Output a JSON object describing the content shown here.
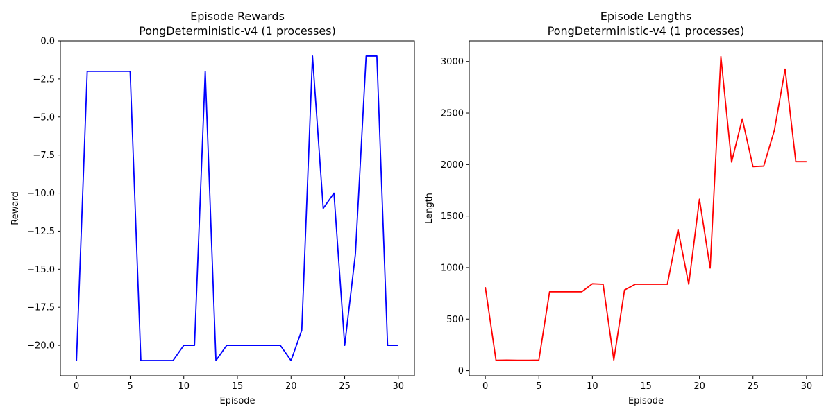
{
  "chart_data": [
    {
      "type": "line",
      "title": "Episode Rewards",
      "subtitle": "PongDeterministic-v4 (1 processes)",
      "xlabel": "Episode",
      "ylabel": "Reward",
      "xlim": [
        -1.5,
        31.5
      ],
      "ylim": [
        -22.0,
        0.0
      ],
      "xticks": [
        0,
        5,
        10,
        15,
        20,
        25,
        30
      ],
      "xtick_labels": [
        "0",
        "5",
        "10",
        "15",
        "20",
        "25",
        "30"
      ],
      "yticks": [
        0.0,
        -2.5,
        -5.0,
        -7.5,
        -10.0,
        -12.5,
        -15.0,
        -17.5,
        -20.0
      ],
      "ytick_labels": [
        "0.0",
        "−2.5",
        "−5.0",
        "−7.5",
        "−10.0",
        "−12.5",
        "−15.0",
        "−17.5",
        "−20.0"
      ],
      "color": "#0000ff",
      "grid": false,
      "series": [
        {
          "x": [
            0,
            1,
            2,
            3,
            4,
            5,
            6,
            7,
            8,
            9,
            10,
            11,
            12,
            13,
            14,
            15,
            16,
            17,
            18,
            19,
            20,
            21,
            22,
            23,
            24,
            25,
            26,
            27,
            28,
            29,
            30
          ],
          "values": [
            -21,
            -2,
            -2,
            -2,
            -2,
            -2,
            -21,
            -21,
            -21,
            -21,
            -20,
            -20,
            -2,
            -21,
            -20,
            -20,
            -20,
            -20,
            -20,
            -20,
            -21,
            -19,
            -1,
            -11,
            -10,
            -20,
            -14,
            -1,
            -1,
            -20,
            -20
          ]
        }
      ]
    },
    {
      "type": "line",
      "title": "Episode Lengths",
      "subtitle": "PongDeterministic-v4 (1 processes)",
      "xlabel": "Episode",
      "ylabel": "Length",
      "xlim": [
        -1.5,
        31.5
      ],
      "ylim": [
        -50,
        3200
      ],
      "xticks": [
        0,
        5,
        10,
        15,
        20,
        25,
        30
      ],
      "xtick_labels": [
        "0",
        "5",
        "10",
        "15",
        "20",
        "25",
        "30"
      ],
      "yticks": [
        0,
        500,
        1000,
        1500,
        2000,
        2500,
        3000
      ],
      "ytick_labels": [
        "0",
        "500",
        "1000",
        "1500",
        "2000",
        "2500",
        "3000"
      ],
      "color": "#ff0000",
      "grid": false,
      "series": [
        {
          "x": [
            0,
            1,
            2,
            3,
            4,
            5,
            6,
            7,
            8,
            9,
            10,
            11,
            12,
            13,
            14,
            15,
            16,
            17,
            18,
            19,
            20,
            21,
            22,
            23,
            24,
            25,
            26,
            27,
            28,
            29,
            30
          ],
          "values": [
            810,
            100,
            102,
            100,
            100,
            102,
            765,
            765,
            765,
            765,
            843,
            838,
            103,
            782,
            838,
            838,
            838,
            838,
            1368,
            838,
            1664,
            996,
            3048,
            2024,
            2443,
            1980,
            1985,
            2334,
            2926,
            2028,
            2028
          ]
        }
      ]
    }
  ]
}
